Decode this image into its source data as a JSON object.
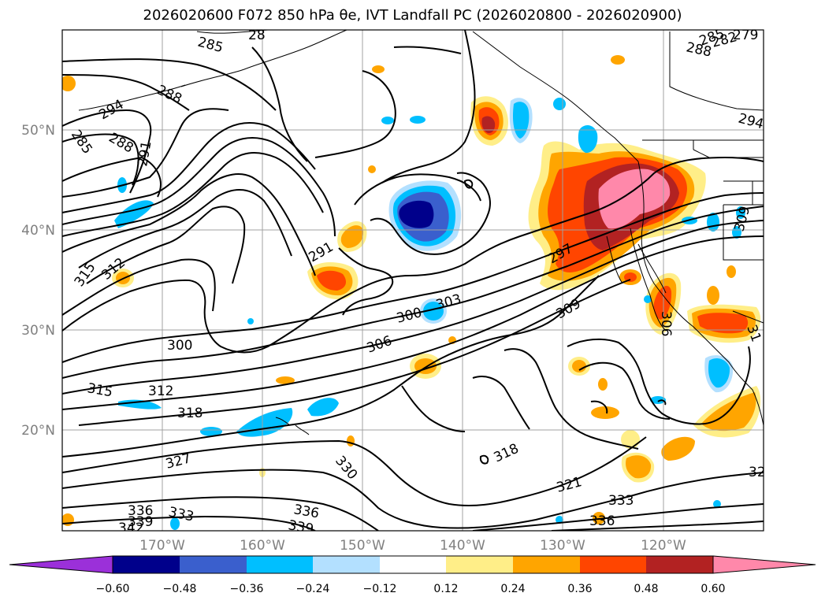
{
  "title": "2026020600 F072 850 hPa θe, IVT Landfall PC (2026020800 - 2026020900)",
  "lat_labels": [
    "50°N",
    "40°N",
    "30°N",
    "20°N"
  ],
  "lon_labels": [
    "170°W",
    "160°W",
    "150°W",
    "140°W",
    "130°W",
    "120°W"
  ],
  "colorbar": {
    "ticks": [
      "−0.60",
      "−0.48",
      "−0.36",
      "−0.24",
      "−0.12",
      "0.12",
      "0.24",
      "0.36",
      "0.48",
      "0.60"
    ],
    "colors": [
      "#9b30d9",
      "#00008b",
      "#3a5fcd",
      "#00bfff",
      "#b3e0ff",
      "#ffffff",
      "#ffee88",
      "#ffa500",
      "#ff4500",
      "#b22222",
      "#ff88aa"
    ]
  },
  "contour_labels": [
    {
      "text": "285"
    },
    {
      "text": "288"
    },
    {
      "text": "294"
    },
    {
      "text": "285"
    },
    {
      "text": "288"
    },
    {
      "text": "291"
    },
    {
      "text": "288"
    },
    {
      "text": "285"
    },
    {
      "text": "294"
    },
    {
      "text": "291"
    },
    {
      "text": "312"
    },
    {
      "text": "315"
    },
    {
      "text": "300"
    },
    {
      "text": "297"
    },
    {
      "text": "300"
    },
    {
      "text": "303"
    },
    {
      "text": "306"
    },
    {
      "text": "309"
    },
    {
      "text": "306"
    },
    {
      "text": "309"
    },
    {
      "text": "315"
    },
    {
      "text": "312"
    },
    {
      "text": "318"
    },
    {
      "text": "327"
    },
    {
      "text": "330"
    },
    {
      "text": "318"
    },
    {
      "text": "321"
    },
    {
      "text": "333"
    },
    {
      "text": "336"
    },
    {
      "text": "336"
    },
    {
      "text": "333"
    },
    {
      "text": "339"
    },
    {
      "text": "336"
    },
    {
      "text": "339"
    },
    {
      "text": "342"
    },
    {
      "text": "31"
    },
    {
      "text": "32"
    },
    {
      "text": "28"
    },
    {
      "text": "279"
    },
    {
      "text": "282"
    }
  ]
}
